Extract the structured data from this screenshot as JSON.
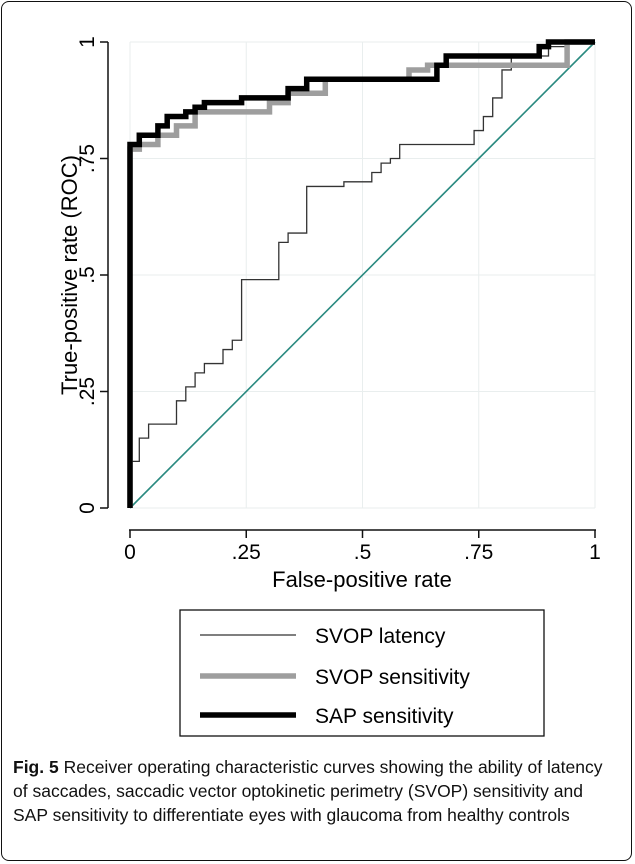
{
  "chart_data": {
    "type": "line",
    "xlabel": "False-positive rate",
    "ylabel": "True-positive rate (ROC)",
    "xlim": [
      0,
      1
    ],
    "ylim": [
      0,
      1
    ],
    "xticks": [
      {
        "value": 0,
        "label": "0"
      },
      {
        "value": 0.25,
        "label": ".25"
      },
      {
        "value": 0.5,
        "label": ".5"
      },
      {
        "value": 0.75,
        "label": ".75"
      },
      {
        "value": 1,
        "label": "1"
      }
    ],
    "yticks": [
      {
        "value": 0,
        "label": "0"
      },
      {
        "value": 0.25,
        "label": ".25"
      },
      {
        "value": 0.5,
        "label": ".5"
      },
      {
        "value": 0.75,
        "label": ".75"
      },
      {
        "value": 1,
        "label": "1"
      }
    ],
    "grid": true,
    "legend_position": "bottom",
    "reference_line": {
      "x": [
        0,
        1
      ],
      "y": [
        0,
        1
      ],
      "color": "#2a8a80"
    },
    "series": [
      {
        "name": "SVOP latency",
        "color": "#333333",
        "style": "thin",
        "x": [
          0,
          0,
          0.02,
          0.02,
          0.04,
          0.04,
          0.1,
          0.1,
          0.12,
          0.12,
          0.14,
          0.14,
          0.16,
          0.16,
          0.2,
          0.2,
          0.22,
          0.22,
          0.24,
          0.24,
          0.26,
          0.26,
          0.32,
          0.32,
          0.34,
          0.34,
          0.38,
          0.38,
          0.42,
          0.42,
          0.46,
          0.46,
          0.52,
          0.52,
          0.54,
          0.54,
          0.56,
          0.56,
          0.58,
          0.58,
          0.62,
          0.62,
          0.74,
          0.74,
          0.76,
          0.76,
          0.78,
          0.78,
          0.8,
          0.8,
          0.82,
          0.82,
          0.9,
          0.9,
          0.94,
          0.94,
          1
        ],
        "y": [
          0,
          0.1,
          0.1,
          0.15,
          0.15,
          0.18,
          0.18,
          0.23,
          0.23,
          0.26,
          0.26,
          0.29,
          0.29,
          0.31,
          0.31,
          0.34,
          0.34,
          0.36,
          0.36,
          0.49,
          0.49,
          0.49,
          0.49,
          0.57,
          0.57,
          0.59,
          0.59,
          0.69,
          0.69,
          0.69,
          0.69,
          0.7,
          0.7,
          0.72,
          0.72,
          0.74,
          0.74,
          0.75,
          0.75,
          0.78,
          0.78,
          0.78,
          0.78,
          0.81,
          0.81,
          0.84,
          0.84,
          0.88,
          0.88,
          0.94,
          0.94,
          0.97,
          0.97,
          0.99,
          0.99,
          1,
          1
        ]
      },
      {
        "name": "SVOP sensitivity",
        "color": "#9e9e9e",
        "style": "medium",
        "x": [
          0,
          0,
          0.02,
          0.02,
          0.06,
          0.06,
          0.1,
          0.1,
          0.14,
          0.14,
          0.2,
          0.2,
          0.3,
          0.3,
          0.34,
          0.34,
          0.42,
          0.42,
          0.6,
          0.6,
          0.64,
          0.64,
          0.94,
          0.94,
          1
        ],
        "y": [
          0,
          0.77,
          0.77,
          0.78,
          0.78,
          0.8,
          0.8,
          0.82,
          0.82,
          0.85,
          0.85,
          0.85,
          0.85,
          0.87,
          0.87,
          0.89,
          0.89,
          0.92,
          0.92,
          0.94,
          0.94,
          0.95,
          0.95,
          1,
          1
        ]
      },
      {
        "name": "SAP sensitivity",
        "color": "#000000",
        "style": "thick",
        "x": [
          0,
          0,
          0.02,
          0.02,
          0.06,
          0.06,
          0.08,
          0.08,
          0.12,
          0.12,
          0.14,
          0.14,
          0.16,
          0.16,
          0.24,
          0.24,
          0.34,
          0.34,
          0.38,
          0.38,
          0.66,
          0.66,
          0.68,
          0.68,
          0.88,
          0.88,
          0.9,
          0.9,
          1
        ],
        "y": [
          0,
          0.78,
          0.78,
          0.8,
          0.8,
          0.82,
          0.82,
          0.84,
          0.84,
          0.85,
          0.85,
          0.86,
          0.86,
          0.87,
          0.87,
          0.88,
          0.88,
          0.9,
          0.9,
          0.92,
          0.92,
          0.95,
          0.95,
          0.97,
          0.97,
          0.99,
          0.99,
          1,
          1
        ]
      }
    ]
  },
  "caption": {
    "label": "Fig. 5",
    "text": "Receiver operating characteristic curves showing the ability of latency of saccades, saccadic vector optokinetic perimetry (SVOP) sensitivity and SAP sensitivity to differentiate eyes with glaucoma from healthy controls"
  }
}
